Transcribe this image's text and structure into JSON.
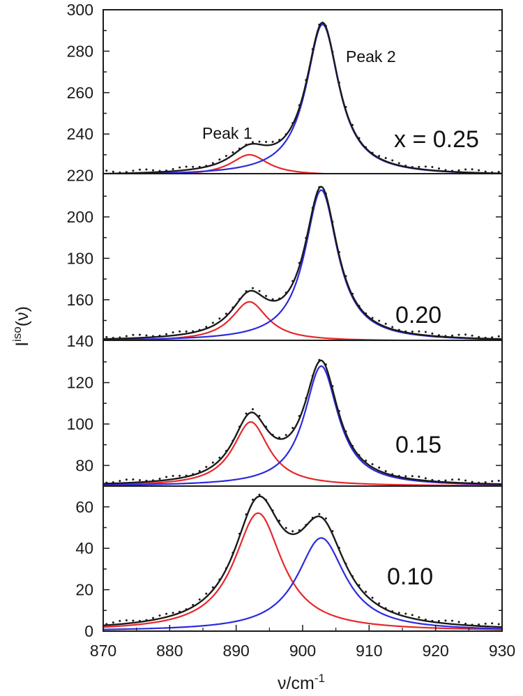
{
  "chart_data": {
    "type": "line",
    "xlabel": "ν/cm",
    "xlabel_sup": "-1",
    "ylabel": "I",
    "ylabel_sup": "iso",
    "ylabel_suffix": "(ν)",
    "xlim": [
      870,
      930
    ],
    "x_ticks": [
      870,
      880,
      890,
      900,
      910,
      920,
      930
    ],
    "y_ticks": [
      0,
      20,
      40,
      60,
      80,
      100,
      120,
      140,
      160,
      180,
      200,
      220,
      240,
      260,
      280,
      300
    ],
    "ylim": [
      0,
      300
    ],
    "grid": false,
    "colors": {
      "peak1": "#e8262a",
      "peak2": "#2a2ae0",
      "total": "#1a1a1a",
      "data": "#1a1a1a",
      "baseline": "#1a1a1a"
    },
    "annotations": {
      "peak1": "Peak 1",
      "peak2": "Peak 2"
    },
    "panels": [
      {
        "label": "x = 0.25",
        "offset": 220,
        "y_range": [
          220,
          300
        ],
        "peak1": {
          "center": 892.0,
          "height": 10,
          "hwhm": 3.4
        },
        "peak2": {
          "center": 903.0,
          "height": 73,
          "hwhm": 3.0
        }
      },
      {
        "label": "0.20",
        "offset": 140,
        "y_range": [
          140,
          220
        ],
        "peak1": {
          "center": 892.0,
          "height": 19,
          "hwhm": 3.3
        },
        "peak2": {
          "center": 902.8,
          "height": 73,
          "hwhm": 3.0
        }
      },
      {
        "label": "0.15",
        "offset": 70,
        "y_range": [
          70,
          140
        ],
        "peak1": {
          "center": 892.2,
          "height": 31,
          "hwhm": 3.3
        },
        "peak2": {
          "center": 902.8,
          "height": 58,
          "hwhm": 3.1
        }
      },
      {
        "label": "0.10",
        "offset": 0,
        "y_range": [
          0,
          70
        ],
        "peak1": {
          "center": 893.3,
          "height": 57,
          "hwhm": 4.4
        },
        "peak2": {
          "center": 902.8,
          "height": 45,
          "hwhm": 4.4
        }
      }
    ]
  }
}
